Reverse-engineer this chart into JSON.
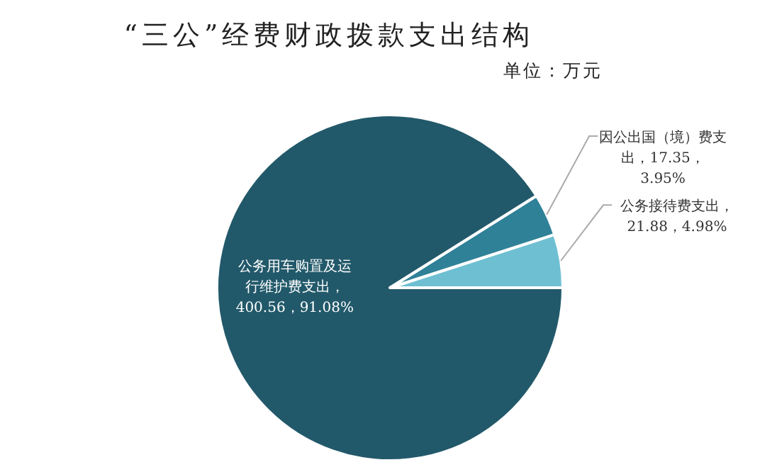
{
  "chart_data": {
    "type": "pie",
    "title": "“三公”经费财政拨款支出结构",
    "subtitle": "单位：万元",
    "categories": [
      "公务接待费支出，21.88，4.98%",
      "因公出国（境）费支出，17.35，3.95%",
      "公务用车购置及运行维护费支出，400.56，91.08%"
    ],
    "values": [
      21.88,
      17.35,
      400.56
    ],
    "colors": [
      "#6fbfd2",
      "#2f8197",
      "#22596a"
    ]
  }
}
